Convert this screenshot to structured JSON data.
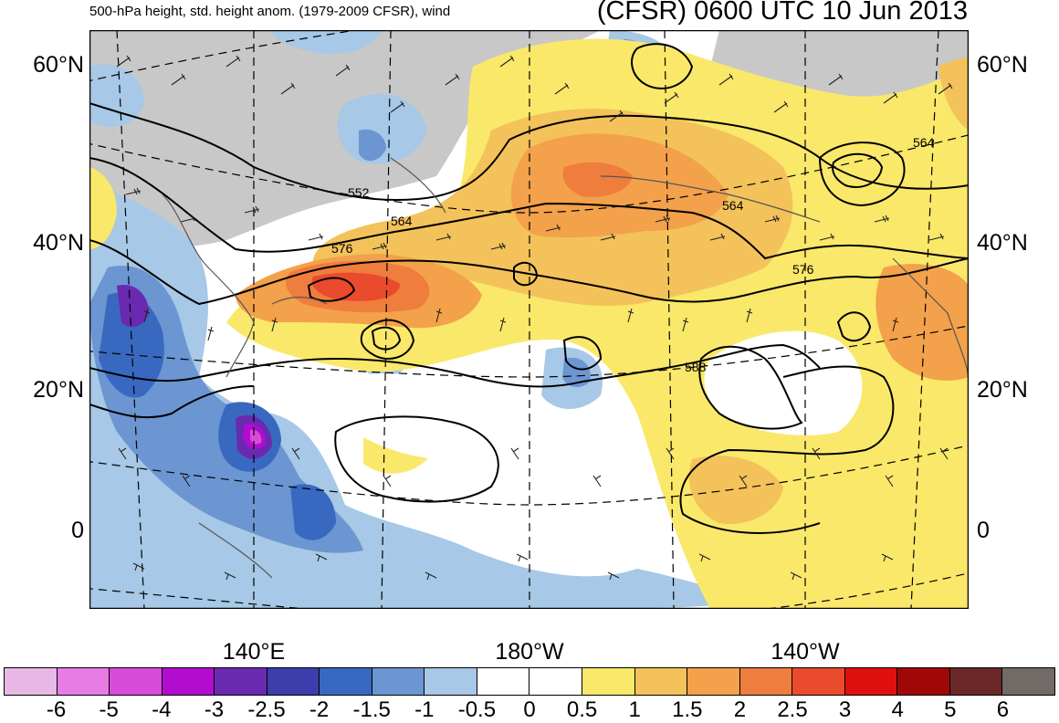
{
  "header": {
    "subtitle": "500-hPa height, std. height anom. (1979-2009 CFSR), wind",
    "title": "(CFSR) 0600 UTC 10 Jun 2013"
  },
  "map": {
    "lat_labels": [
      "60°N",
      "40°N",
      "20°N",
      "0"
    ],
    "lon_labels": [
      "140°E",
      "180°W",
      "140°W"
    ],
    "contour_labels": [
      "552",
      "564",
      "576",
      "564",
      "576",
      "588",
      "564"
    ]
  },
  "colorbar": {
    "colors": [
      "#e8b9e6",
      "#e77de4",
      "#d84cd9",
      "#b20ccf",
      "#6a2ab0",
      "#3b3eab",
      "#3968c0",
      "#6b96d2",
      "#a7c8e6",
      "#ffffff",
      "#ffffff",
      "#fae86a",
      "#f3c25a",
      "#f3a14a",
      "#ef7d3d",
      "#ea4b2d",
      "#e01010",
      "#a00808",
      "#6b2828",
      "#716a66"
    ],
    "labels": [
      "-6",
      "-5",
      "-4",
      "-3",
      "-2.5",
      "-2",
      "-1.5",
      "-1",
      "-0.5",
      "0",
      "0.5",
      "1",
      "1.5",
      "2",
      "2.5",
      "3",
      "4",
      "5",
      "6"
    ]
  },
  "palette": {
    "land_gray": "#c8c8c8",
    "white": "#ffffff"
  }
}
